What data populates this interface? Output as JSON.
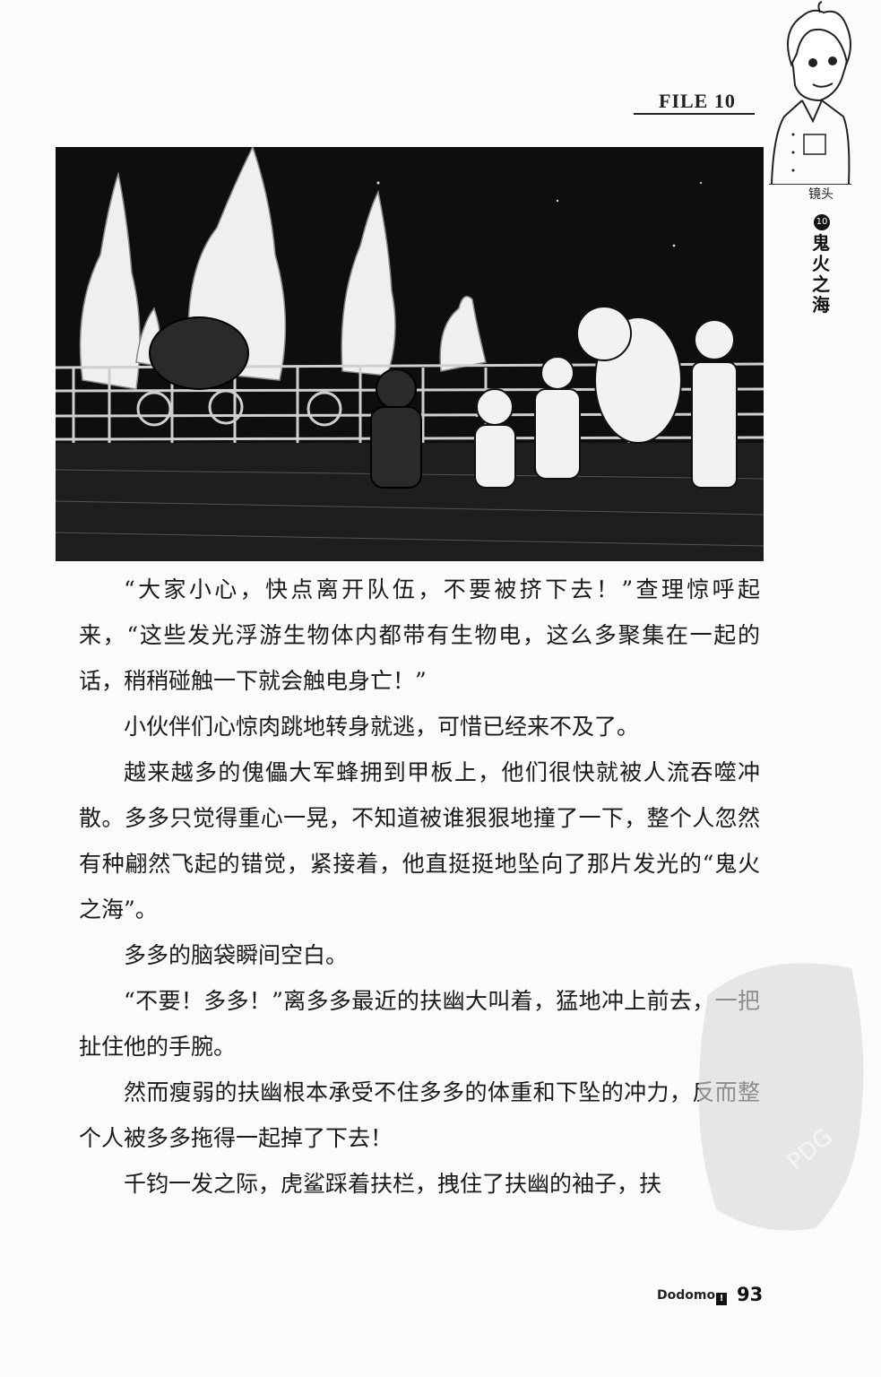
{
  "header": {
    "file_label": "FILE 10",
    "side_label": "镜头",
    "chapter_number": "10",
    "chapter_title": "鬼火之海"
  },
  "illustration": {
    "description_icon": "manga-ship-deck-ghost-fire-icon"
  },
  "body": {
    "paragraphs": [
      "“大家小心，快点离开队伍，不要被挤下去！”查理惊呼起来，“这些发光浮游生物体内都带有生物电，这么多聚集在一起的话，稍稍碰触一下就会触电身亡！”",
      "小伙伴们心惊肉跳地转身就逃，可惜已经来不及了。",
      "越来越多的傀儡大军蜂拥到甲板上，他们很快就被人流吞噬冲散。多多只觉得重心一晃，不知道被谁狠狠地撞了一下，整个人忽然有种翩然飞起的错觉，紧接着，他直挺挺地坠向了那片发光的“鬼火之海”。",
      "多多的脑袋瞬间空白。",
      "“不要！多多！”离多多最近的扶幽大叫着，猛地冲上前去，一把扯住他的手腕。",
      "然而瘦弱的扶幽根本承受不住多多的体重和下坠的冲力，反而整个人被多多拖得一起掉了下去！",
      "千钧一发之际，虎鲨踩着扶栏，拽住了扶幽的袖子，扶"
    ]
  },
  "watermark": {
    "text": "PDG"
  },
  "footer": {
    "brand": "Dodomo",
    "brand_mark": "!",
    "page_number": "93"
  }
}
